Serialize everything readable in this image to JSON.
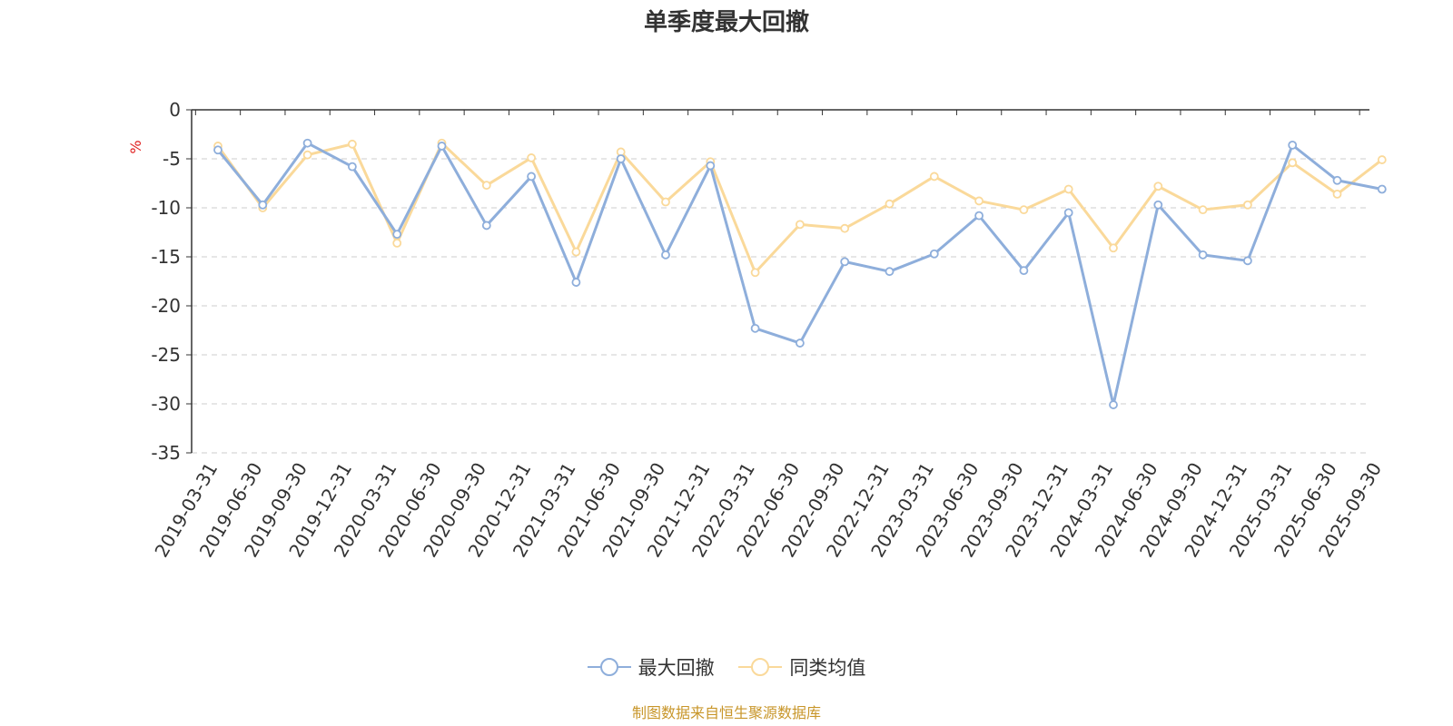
{
  "source_note": "制图数据来自恒生聚源数据库",
  "chart_data": {
    "type": "line",
    "title": "单季度最大回撤",
    "ylabel": "%",
    "ylim": [
      -35,
      0
    ],
    "yticks": [
      0,
      -5,
      -10,
      -15,
      -20,
      -25,
      -30,
      -35
    ],
    "grid": true,
    "legend_position": "bottom-center",
    "categories": [
      "2019-03-31",
      "2019-06-30",
      "2019-09-30",
      "2019-12-31",
      "2020-03-31",
      "2020-06-30",
      "2020-09-30",
      "2020-12-31",
      "2021-03-31",
      "2021-06-30",
      "2021-09-30",
      "2021-12-31",
      "2022-03-31",
      "2022-06-30",
      "2022-09-30",
      "2022-12-31",
      "2023-03-31",
      "2023-06-30",
      "2023-09-30",
      "2023-12-31",
      "2024-03-31",
      "2024-06-30",
      "2024-09-30",
      "2024-12-31",
      "2025-03-31",
      "2025-06-30",
      "2025-09-30"
    ],
    "series": [
      {
        "name": "最大回撤",
        "color": "#8eaedb",
        "values": [
          -4.1,
          -9.7,
          -3.4,
          -5.8,
          -12.7,
          -3.7,
          -11.8,
          -6.8,
          -17.6,
          -5.0,
          -14.8,
          -5.7,
          -22.3,
          -23.8,
          -15.5,
          -16.5,
          -14.7,
          -10.8,
          -16.4,
          -10.5,
          -30.1,
          -9.7,
          -14.8,
          -15.4,
          -3.6,
          -7.2,
          -8.1
        ]
      },
      {
        "name": "同类均值",
        "color": "#fad99a",
        "values": [
          -3.7,
          -10.0,
          -4.6,
          -3.5,
          -13.6,
          -3.4,
          -7.7,
          -4.9,
          -14.5,
          -4.3,
          -9.4,
          -5.3,
          -16.6,
          -11.7,
          -12.1,
          -9.6,
          -6.8,
          -9.3,
          -10.2,
          -8.1,
          -14.1,
          -7.8,
          -10.2,
          -9.7,
          -5.4,
          -8.6,
          -5.1
        ]
      }
    ]
  }
}
